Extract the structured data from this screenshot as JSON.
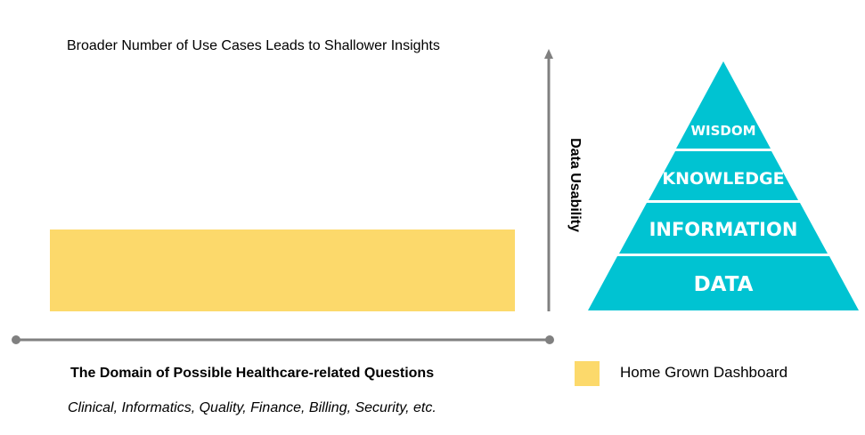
{
  "title": "Broader Number of Use Cases Leads to Shallower Insights",
  "y_axis_label": "Data Usability",
  "x_axis_title": "The Domain of Possible Healthcare-related Questions",
  "x_axis_subtitle": "Clinical, Informatics, Quality, Finance, Billing, Security, etc.",
  "legend": {
    "label": "Home Grown Dashboard",
    "color": "#fcd96b"
  },
  "pyramid": {
    "color": "#00c3d2",
    "levels": [
      "WISDOM",
      "KNOWLEDGE",
      "INFORMATION",
      "DATA"
    ]
  },
  "axis_color": "#808080"
}
